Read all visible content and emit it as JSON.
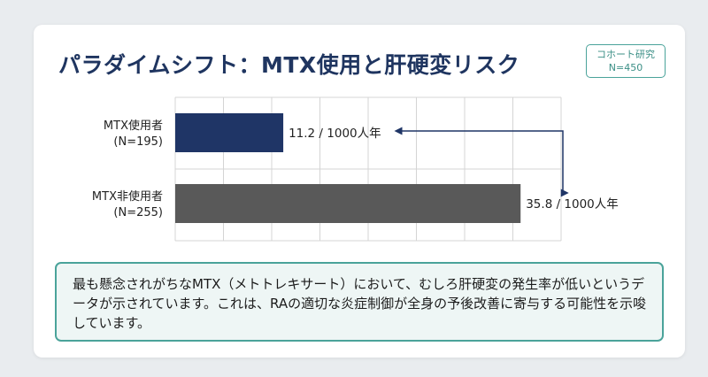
{
  "slide": {
    "title": "パラダイムシフト：MTX使用と肝硬変リスク",
    "badge": {
      "line1": "コホート研究",
      "line2": "N=450"
    },
    "note": "最も懸念されがちなMTX（メトトレキサート）において、むしろ肝硬変の発生率が低いというデータが示されています。これは、RAの適切な炎症制御が全身の予後改善に寄与する可能性を示唆しています。"
  },
  "chart_data": {
    "type": "bar",
    "orientation": "horizontal",
    "categories": [
      [
        "MTX使用者",
        "(N=195)"
      ],
      [
        "MTX非使用者",
        "(N=255)"
      ]
    ],
    "values": [
      11.2,
      35.8
    ],
    "data_labels": [
      "11.2 / 1000人年",
      "35.8 / 1000人年"
    ],
    "unit": "/ 1000人年",
    "xlim": [
      0,
      40
    ],
    "grid": true,
    "colors": [
      "#1f3566",
      "#595959"
    ],
    "annotation": "comparison-arrow"
  }
}
